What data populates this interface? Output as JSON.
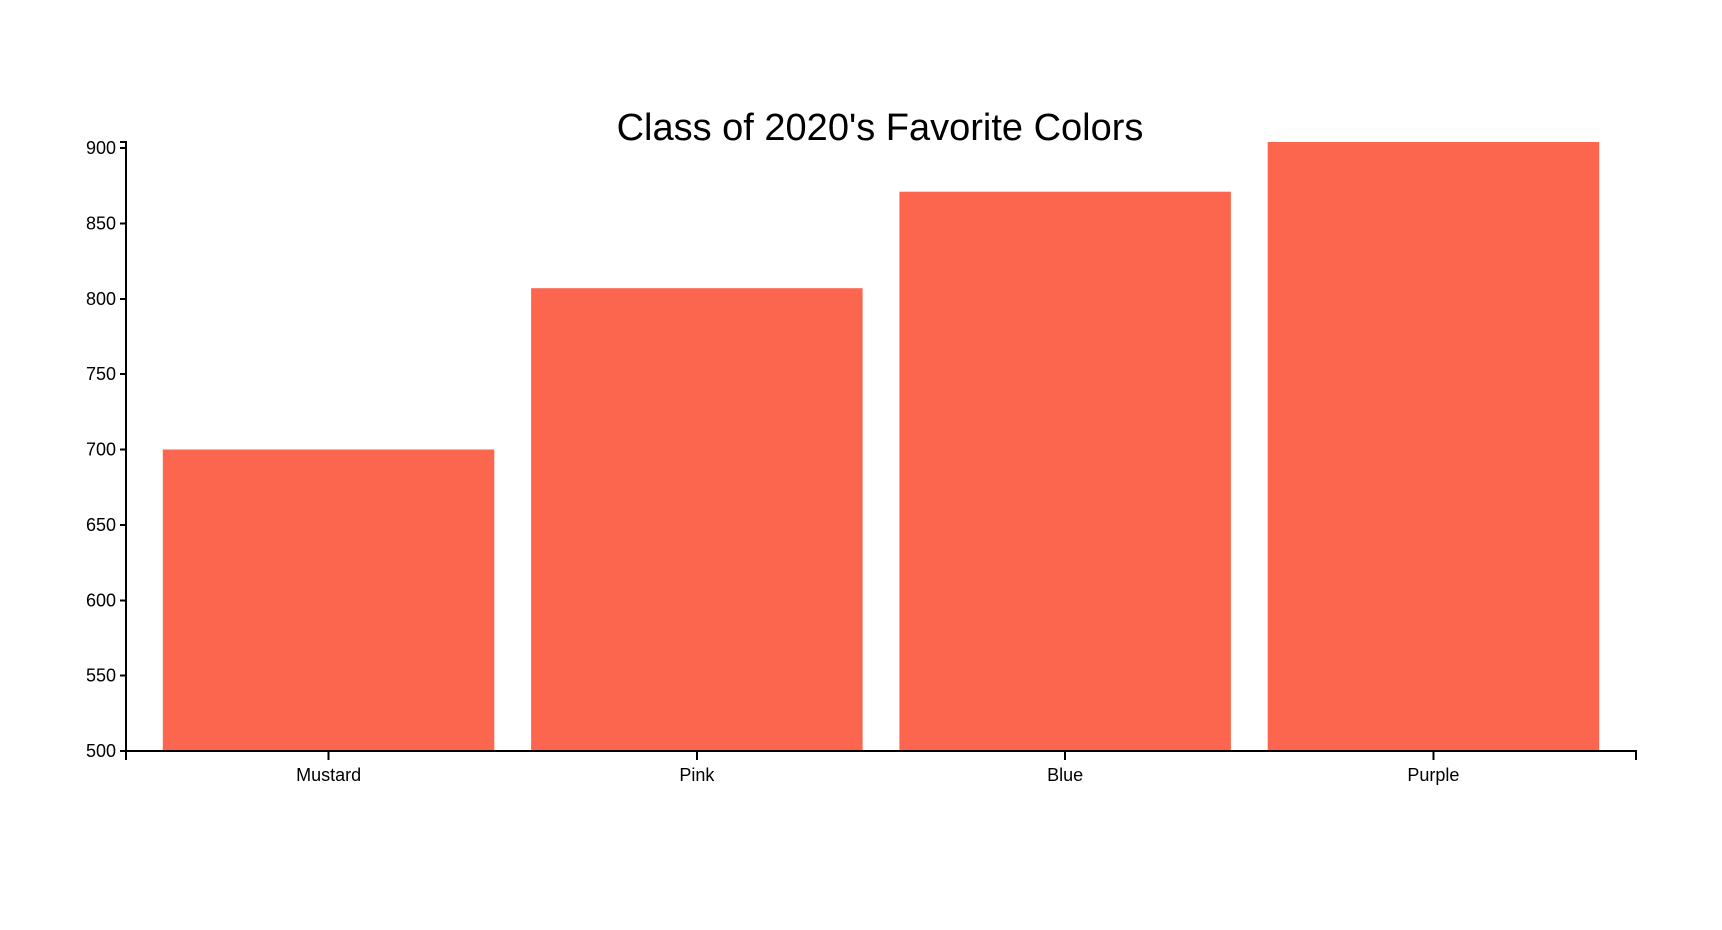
{
  "chart_data": {
    "type": "bar",
    "title": "Class of 2020's Favorite Colors",
    "categories": [
      "Mustard",
      "Pink",
      "Blue",
      "Purple"
    ],
    "values": [
      700,
      807,
      871,
      904
    ],
    "ylim": [
      500,
      904
    ],
    "yticks": [
      500,
      550,
      600,
      650,
      700,
      750,
      800,
      850,
      900
    ],
    "ytick_labels": [
      "500",
      "550",
      "600",
      "650",
      "700",
      "750",
      "800",
      "850",
      "900"
    ],
    "bar_color": "#fc664e",
    "axis_color": "#000000",
    "grid": false
  }
}
